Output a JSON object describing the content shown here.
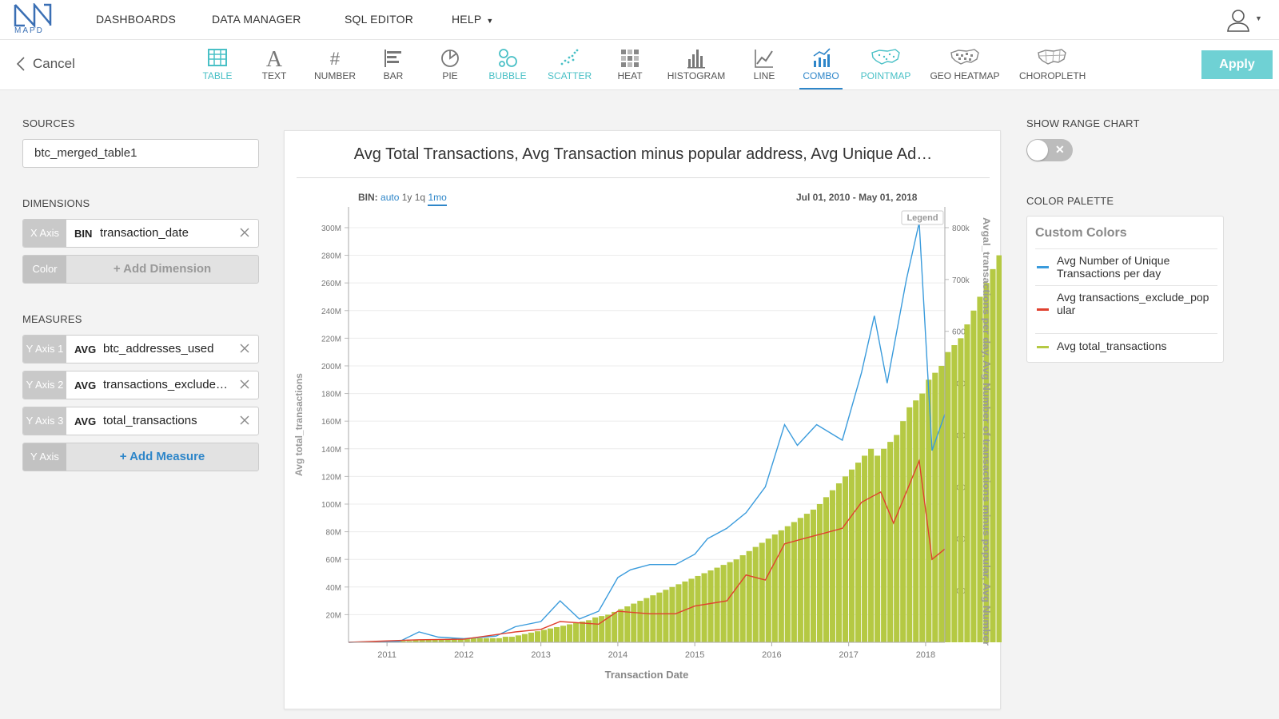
{
  "app": {
    "logo_text": "MAPD"
  },
  "nav": {
    "items": [
      "DASHBOARDS",
      "DATA MANAGER",
      "SQL EDITOR",
      "HELP"
    ]
  },
  "toolbar": {
    "cancel_label": "Cancel",
    "apply_label": "Apply",
    "tools": [
      "TABLE",
      "TEXT",
      "NUMBER",
      "BAR",
      "PIE",
      "BUBBLE",
      "SCATTER",
      "HEAT",
      "HISTOGRAM",
      "LINE",
      "COMBO",
      "POINTMAP",
      "GEO HEATMAP",
      "CHOROPLETH"
    ],
    "selected_tool": "COMBO"
  },
  "left": {
    "sources_label": "SOURCES",
    "source_value": "btc_merged_table1",
    "dimensions_label": "DIMENSIONS",
    "x_axis": {
      "tag": "X Axis",
      "agg": "BIN",
      "field": "transaction_date"
    },
    "color": {
      "tag": "Color",
      "add": "+ Add Dimension"
    },
    "measures_label": "MEASURES",
    "measures": [
      {
        "tag": "Y Axis 1",
        "agg": "AVG",
        "field": "btc_addresses_used"
      },
      {
        "tag": "Y Axis 2",
        "agg": "AVG",
        "field": "transactions_exclude…"
      },
      {
        "tag": "Y Axis 3",
        "agg": "AVG",
        "field": "total_transactions"
      }
    ],
    "add_measure": {
      "tag": "Y Axis",
      "add": "+ Add Measure"
    }
  },
  "chart": {
    "title": "Avg Total Transactions, Avg Transaction minus popular address, Avg Unique Ad…",
    "bin_label": "BIN:",
    "bin_options": [
      "auto",
      "1y",
      "1q",
      "1mo"
    ],
    "range_start": "Jul 01, 2010",
    "range_sep": "-",
    "range_end": "May 01, 2018",
    "legend_button": "Legend"
  },
  "right": {
    "range_chart_label": "SHOW RANGE CHART",
    "range_chart_on": false,
    "palette_label": "COLOR PALETTE",
    "palette_head": "Custom Colors",
    "palette_items": [
      {
        "label": "Avg Number of Unique Transactions per day",
        "color": "#3a9bdc"
      },
      {
        "label": "Avg transactions_exclude_popular",
        "color": "#e0412f"
      },
      {
        "label": "Avg total_transactions",
        "color": "#b5c943"
      }
    ]
  },
  "colors": {
    "accent": "#2e86c9",
    "teal": "#49c0c6",
    "apply": "#6fd1d4",
    "bar": "#b5c943",
    "blue_line": "#3a9bdc",
    "red_line": "#e0412f"
  },
  "chart_data": {
    "type": "bar+line",
    "xlabel": "Transaction Date",
    "ylabel_left": "Avg total_transactions",
    "ylabel_right": "Avgal_transactions per day, Avg Number of transactions minus popular, Avg Number",
    "x_ticks": [
      "2011",
      "2012",
      "2013",
      "2014",
      "2015",
      "2016",
      "2017",
      "2018"
    ],
    "y_left_ticks": [
      "20M",
      "40M",
      "60M",
      "80M",
      "100M",
      "120M",
      "140M",
      "160M",
      "180M",
      "200M",
      "220M",
      "240M",
      "260M",
      "280M",
      "300M"
    ],
    "y_right_ticks": [
      "100k",
      "200k",
      "300k",
      "400k",
      "500k",
      "600k",
      "700k",
      "800k"
    ],
    "ylim_left": [
      0,
      315000000
    ],
    "ylim_right": [
      0,
      840000
    ],
    "x_range": [
      "2010-07",
      "2018-04"
    ],
    "bar_series": {
      "name": "Avg total_transactions",
      "start": "2010-12",
      "values_M": [
        1,
        1,
        1,
        1,
        1,
        1.5,
        2,
        2,
        2,
        2,
        2.5,
        3,
        3,
        3,
        3,
        3,
        3,
        3,
        3,
        4,
        4,
        5,
        6,
        7,
        8,
        9,
        10,
        11,
        12,
        13,
        14,
        15,
        16,
        18,
        19,
        20,
        22,
        24,
        26,
        28,
        30,
        32,
        34,
        36,
        38,
        40,
        42,
        44,
        46,
        48,
        50,
        52,
        54,
        56,
        58,
        60,
        63,
        66,
        69,
        72,
        75,
        78,
        81,
        84,
        87,
        90,
        93,
        96,
        100,
        105,
        110,
        115,
        120,
        125,
        130,
        135,
        140,
        135,
        140,
        145,
        150,
        160,
        170,
        175,
        180,
        190,
        195,
        200,
        210,
        215,
        220,
        230,
        240,
        250,
        260,
        270,
        280,
        290,
        300,
        302,
        305,
        308,
        310
      ]
    },
    "line_series": [
      {
        "name": "Avg Number of Unique Transactions per day",
        "axis": "right",
        "points": [
          [
            "2010-07",
            0
          ],
          [
            "2011-03",
            2000
          ],
          [
            "2011-06",
            20000
          ],
          [
            "2011-09",
            10000
          ],
          [
            "2012-01",
            7000
          ],
          [
            "2012-06",
            12000
          ],
          [
            "2012-09",
            30000
          ],
          [
            "2013-01",
            40000
          ],
          [
            "2013-04",
            80000
          ],
          [
            "2013-07",
            45000
          ],
          [
            "2013-10",
            60000
          ],
          [
            "2014-01",
            125000
          ],
          [
            "2014-03",
            140000
          ],
          [
            "2014-06",
            150000
          ],
          [
            "2014-10",
            150000
          ],
          [
            "2015-01",
            170000
          ],
          [
            "2015-03",
            200000
          ],
          [
            "2015-06",
            220000
          ],
          [
            "2015-09",
            250000
          ],
          [
            "2015-12",
            300000
          ],
          [
            "2016-03",
            420000
          ],
          [
            "2016-05",
            380000
          ],
          [
            "2016-08",
            420000
          ],
          [
            "2016-12",
            390000
          ],
          [
            "2017-03",
            520000
          ],
          [
            "2017-05",
            630000
          ],
          [
            "2017-07",
            500000
          ],
          [
            "2017-10",
            700000
          ],
          [
            "2017-12",
            810000
          ],
          [
            "2018-02",
            370000
          ],
          [
            "2018-04",
            440000
          ]
        ]
      },
      {
        "name": "Avg transactions_exclude_popular",
        "axis": "right",
        "points": [
          [
            "2010-07",
            0
          ],
          [
            "2011-06",
            5000
          ],
          [
            "2012-01",
            6000
          ],
          [
            "2012-09",
            20000
          ],
          [
            "2013-01",
            25000
          ],
          [
            "2013-04",
            40000
          ],
          [
            "2013-10",
            35000
          ],
          [
            "2014-01",
            60000
          ],
          [
            "2014-06",
            55000
          ],
          [
            "2014-10",
            55000
          ],
          [
            "2015-01",
            70000
          ],
          [
            "2015-06",
            80000
          ],
          [
            "2015-09",
            130000
          ],
          [
            "2015-12",
            120000
          ],
          [
            "2016-03",
            190000
          ],
          [
            "2016-06",
            200000
          ],
          [
            "2016-09",
            210000
          ],
          [
            "2016-12",
            220000
          ],
          [
            "2017-03",
            270000
          ],
          [
            "2017-06",
            290000
          ],
          [
            "2017-08",
            230000
          ],
          [
            "2017-12",
            350000
          ],
          [
            "2018-02",
            160000
          ],
          [
            "2018-04",
            180000
          ]
        ]
      }
    ],
    "legend": "top-right (collapsed)",
    "grid": true
  }
}
